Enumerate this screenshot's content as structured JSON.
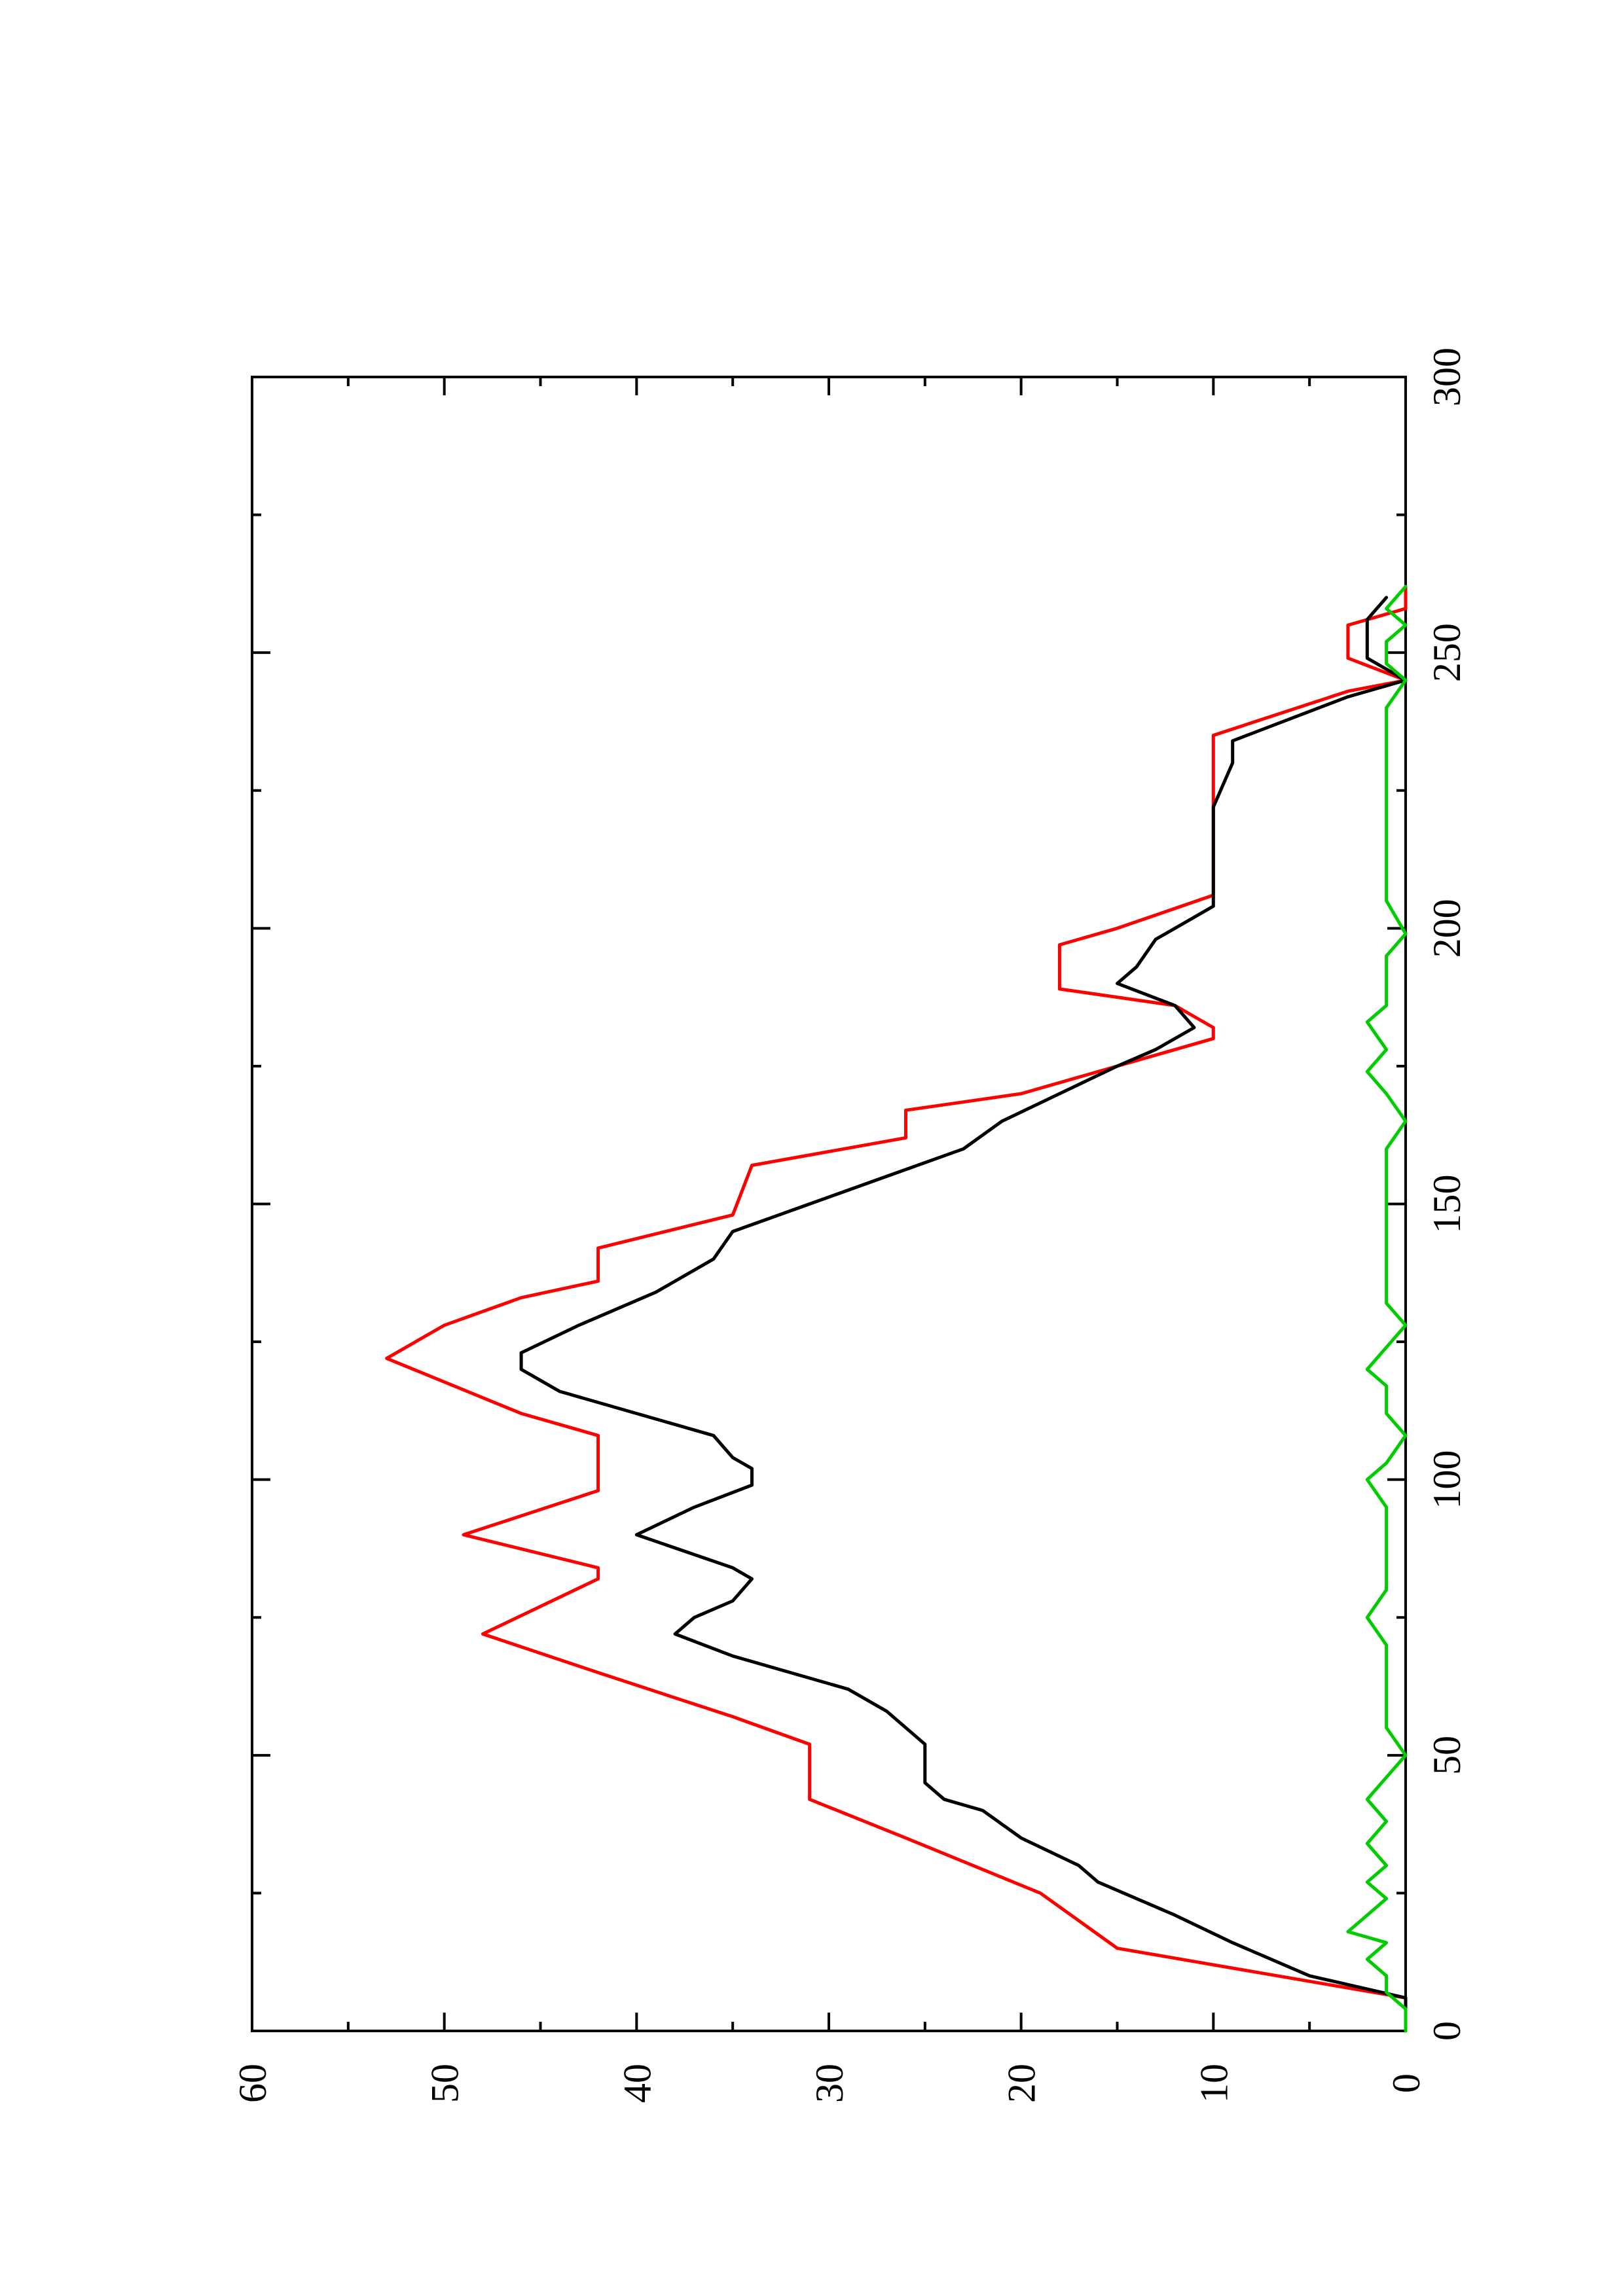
{
  "chart_data": {
    "type": "line",
    "orientation": "rotated-90-ccw",
    "title": "",
    "xlabel": "",
    "ylabel": "",
    "xlim": [
      0,
      300
    ],
    "ylim": [
      0,
      60
    ],
    "x_ticks": [
      "0",
      "50",
      "100",
      "150",
      "200",
      "250",
      "300"
    ],
    "y_ticks": [
      "0",
      "10",
      "20",
      "30",
      "40",
      "50",
      "60"
    ],
    "grid": false,
    "legend": "none",
    "series": [
      {
        "color": "#ff0000",
        "style": "step-segments",
        "points": [
          [
            0,
            0
          ],
          [
            6,
            0
          ],
          [
            15,
            15
          ],
          [
            25,
            19
          ],
          [
            35,
            26
          ],
          [
            42,
            31
          ],
          [
            52,
            31
          ],
          [
            57,
            35
          ],
          [
            65,
            42
          ],
          [
            72,
            48
          ],
          [
            82,
            42
          ],
          [
            84,
            42
          ],
          [
            90,
            49
          ],
          [
            98,
            42
          ],
          [
            108,
            42
          ],
          [
            112,
            46
          ],
          [
            122,
            53
          ],
          [
            128,
            50
          ],
          [
            133,
            46
          ],
          [
            136,
            42
          ],
          [
            142,
            42
          ],
          [
            148,
            35
          ],
          [
            157,
            34
          ],
          [
            162,
            26
          ],
          [
            167,
            26
          ],
          [
            170,
            20
          ],
          [
            175,
            15
          ],
          [
            180,
            10
          ],
          [
            182,
            10
          ],
          [
            186,
            12
          ],
          [
            189,
            18
          ],
          [
            197,
            18
          ],
          [
            200,
            15
          ],
          [
            206,
            10
          ],
          [
            235,
            10
          ],
          [
            243,
            3
          ],
          [
            245,
            0
          ],
          [
            249,
            3
          ],
          [
            255,
            3
          ],
          [
            258,
            0
          ],
          [
            262,
            0
          ]
        ]
      },
      {
        "color": "#000000",
        "style": "smooth",
        "points": [
          [
            0,
            0
          ],
          [
            6,
            0
          ],
          [
            10,
            5
          ],
          [
            16,
            9
          ],
          [
            21,
            12
          ],
          [
            27,
            16
          ],
          [
            30,
            17
          ],
          [
            35,
            20
          ],
          [
            40,
            22
          ],
          [
            42,
            24
          ],
          [
            45,
            25
          ],
          [
            52,
            25
          ],
          [
            58,
            27
          ],
          [
            62,
            29
          ],
          [
            65,
            32
          ],
          [
            68,
            35
          ],
          [
            72,
            38
          ],
          [
            75,
            37
          ],
          [
            78,
            35
          ],
          [
            82,
            34
          ],
          [
            84,
            35
          ],
          [
            90,
            40
          ],
          [
            95,
            37
          ],
          [
            99,
            34
          ],
          [
            102,
            34
          ],
          [
            104,
            35
          ],
          [
            108,
            36
          ],
          [
            112,
            40
          ],
          [
            116,
            44
          ],
          [
            120,
            46
          ],
          [
            123,
            46
          ],
          [
            128,
            43
          ],
          [
            134,
            39
          ],
          [
            140,
            36
          ],
          [
            145,
            35
          ],
          [
            150,
            31
          ],
          [
            155,
            27
          ],
          [
            160,
            23
          ],
          [
            165,
            21
          ],
          [
            170,
            18
          ],
          [
            175,
            15
          ],
          [
            178,
            13
          ],
          [
            182,
            11
          ],
          [
            186,
            12
          ],
          [
            190,
            15
          ],
          [
            193,
            14
          ],
          [
            198,
            13
          ],
          [
            204,
            10
          ],
          [
            206,
            10
          ],
          [
            215,
            10
          ],
          [
            222,
            10
          ],
          [
            230,
            9
          ],
          [
            234,
            9
          ],
          [
            238,
            6
          ],
          [
            242,
            3
          ],
          [
            245,
            0
          ],
          [
            249,
            2
          ],
          [
            253,
            2
          ],
          [
            256,
            2
          ],
          [
            260,
            1
          ]
        ]
      },
      {
        "color": "#00cc00",
        "style": "noisy",
        "points": [
          [
            0,
            0
          ],
          [
            4,
            0
          ],
          [
            7,
            1
          ],
          [
            10,
            1
          ],
          [
            13,
            2
          ],
          [
            16,
            1
          ],
          [
            18,
            3
          ],
          [
            21,
            2
          ],
          [
            24,
            1
          ],
          [
            27,
            2
          ],
          [
            30,
            1
          ],
          [
            34,
            2
          ],
          [
            38,
            1
          ],
          [
            42,
            2
          ],
          [
            46,
            1
          ],
          [
            50,
            0
          ],
          [
            55,
            1
          ],
          [
            60,
            1
          ],
          [
            65,
            1
          ],
          [
            70,
            1
          ],
          [
            75,
            2
          ],
          [
            80,
            1
          ],
          [
            85,
            1
          ],
          [
            90,
            1
          ],
          [
            95,
            1
          ],
          [
            100,
            2
          ],
          [
            103,
            1
          ],
          [
            108,
            0
          ],
          [
            112,
            1
          ],
          [
            117,
            1
          ],
          [
            120,
            2
          ],
          [
            124,
            1
          ],
          [
            128,
            0
          ],
          [
            132,
            1
          ],
          [
            136,
            1
          ],
          [
            140,
            1
          ],
          [
            145,
            1
          ],
          [
            150,
            1
          ],
          [
            155,
            1
          ],
          [
            160,
            1
          ],
          [
            165,
            0
          ],
          [
            170,
            1
          ],
          [
            174,
            2
          ],
          [
            178,
            1
          ],
          [
            183,
            2
          ],
          [
            186,
            1
          ],
          [
            190,
            1
          ],
          [
            195,
            1
          ],
          [
            199,
            0
          ],
          [
            205,
            1
          ],
          [
            210,
            1
          ],
          [
            215,
            1
          ],
          [
            220,
            1
          ],
          [
            225,
            1
          ],
          [
            230,
            1
          ],
          [
            235,
            1
          ],
          [
            240,
            1
          ],
          [
            245,
            0
          ],
          [
            248,
            1
          ],
          [
            252,
            1
          ],
          [
            255,
            0
          ],
          [
            258,
            1
          ],
          [
            262,
            0
          ]
        ]
      }
    ]
  }
}
